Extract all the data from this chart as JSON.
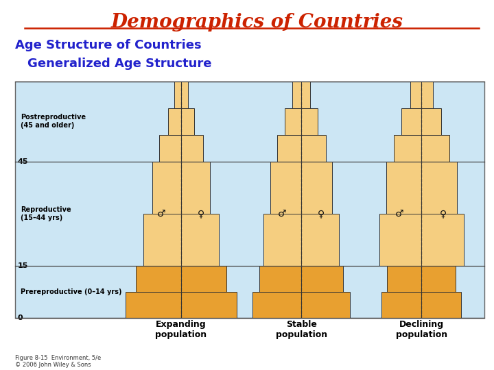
{
  "title": "Demographics of Countries",
  "subtitle1": "Age Structure of Countries",
  "subtitle2": "Generalized Age Structure",
  "title_color": "#CC2200",
  "subtitle_color": "#2222CC",
  "bg_color": "#ffffff",
  "diagram_bg": "#cce6f4",
  "bar_light": "#F5CE80",
  "bar_dark": "#E8A030",
  "bar_outline": "#333333",
  "populations": [
    "Expanding\npopulation",
    "Stable\npopulation",
    "Declining\npopulation"
  ],
  "caption": "Figure 8-15  Environment, 5/e\n© 2006 John Wiley & Sons",
  "cat_labels": [
    "Postreproductive\n(45 and older)",
    "Reproductive\n(15–44 yrs)",
    "Prereproductive (0–14 yrs)"
  ],
  "expanding": {
    "pre": [
      1.0,
      0.82
    ],
    "rep": [
      0.68,
      0.52
    ],
    "post": [
      0.4,
      0.24,
      0.12
    ]
  },
  "stable": {
    "pre": [
      0.88,
      0.76
    ],
    "rep": [
      0.68,
      0.56
    ],
    "post": [
      0.44,
      0.3,
      0.16
    ]
  },
  "declining": {
    "pre": [
      0.72,
      0.62
    ],
    "rep": [
      0.76,
      0.64
    ],
    "post": [
      0.5,
      0.36,
      0.2
    ]
  }
}
